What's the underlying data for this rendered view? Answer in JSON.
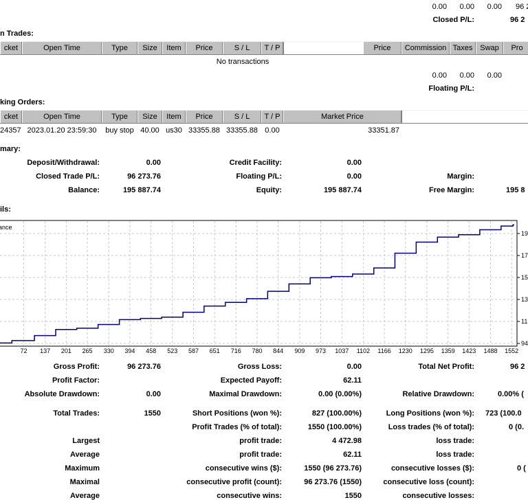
{
  "closed_section": {
    "values": [
      "0.00",
      "0.00",
      "0.00",
      "96 2"
    ],
    "label": "Closed P/L:",
    "value": "96 2"
  },
  "open_trades": {
    "title": "n Trades:",
    "headers": [
      "cket",
      "Open Time",
      "Type",
      "Size",
      "Item",
      "Price",
      "S / L",
      "T / P",
      "Price",
      "Commission",
      "Taxes",
      "Swap",
      "Pro"
    ],
    "empty_text": "No transactions",
    "totals": [
      "0.00",
      "0.00",
      "0.00"
    ],
    "floating_label": "Floating P/L:"
  },
  "working_orders": {
    "title": "king Orders:",
    "headers": [
      "cket",
      "Open Time",
      "Type",
      "Size",
      "Item",
      "Price",
      "S / L",
      "T / P",
      "Market Price"
    ],
    "row": [
      "24357",
      "2023.01.20 23:59:30",
      "buy stop",
      "40.00",
      "us30",
      "33355.88",
      "33355.88",
      "0.00",
      "33351.87"
    ]
  },
  "summary": {
    "title": "mary:",
    "deposit_label": "Deposit/Withdrawal:",
    "deposit_value": "0.00",
    "credit_label": "Credit Facility:",
    "credit_value": "0.00",
    "closed_label": "Closed Trade P/L:",
    "closed_value": "96 273.76",
    "floating_label": "Floating P/L:",
    "floating_value": "0.00",
    "margin_label": "Margin:",
    "balance_label": "Balance:",
    "balance_value": "195 887.74",
    "equity_label": "Equity:",
    "equity_value": "195 887.74",
    "free_margin_label": "Free Margin:",
    "free_margin_value": "195 8"
  },
  "details": {
    "title": "ils:"
  },
  "chart_data": {
    "type": "line",
    "legend": "ance",
    "x_ticks": [
      "72",
      "137",
      "201",
      "265",
      "330",
      "394",
      "458",
      "523",
      "587",
      "651",
      "716",
      "780",
      "844",
      "909",
      "973",
      "1037",
      "1102",
      "1166",
      "1230",
      "1295",
      "1359",
      "1423",
      "1488",
      "1552"
    ],
    "y_ticks": [
      "19",
      "17",
      "15",
      "13",
      "11",
      "94"
    ],
    "series": [
      {
        "color": "#000080",
        "points": [
          [
            0,
            94
          ],
          [
            72,
            96
          ],
          [
            137,
            100
          ],
          [
            201,
            105
          ],
          [
            265,
            106
          ],
          [
            330,
            109
          ],
          [
            394,
            113
          ],
          [
            458,
            114
          ],
          [
            523,
            115
          ],
          [
            587,
            119
          ],
          [
            651,
            124
          ],
          [
            716,
            127
          ],
          [
            780,
            130
          ],
          [
            844,
            136
          ],
          [
            909,
            142
          ],
          [
            973,
            147
          ],
          [
            1037,
            148
          ],
          [
            1102,
            150
          ],
          [
            1166,
            155
          ],
          [
            1230,
            167
          ],
          [
            1295,
            176
          ],
          [
            1359,
            180
          ],
          [
            1423,
            182
          ],
          [
            1488,
            186
          ],
          [
            1552,
            189
          ],
          [
            1560,
            190
          ]
        ]
      }
    ],
    "xlim": [
      0,
      1560
    ],
    "ylim": [
      92,
      193
    ]
  },
  "stats": {
    "gross_profit_label": "Gross Profit:",
    "gross_profit": "96 273.76",
    "gross_loss_label": "Gross Loss:",
    "gross_loss": "0.00",
    "total_net_label": "Total Net Profit:",
    "total_net": "96 2",
    "profit_factor_label": "Profit Factor:",
    "expected_payoff_label": "Expected Payoff:",
    "expected_payoff": "62.11",
    "abs_dd_label": "Absolute Drawdown:",
    "abs_dd": "0.00",
    "max_dd_label": "Maximal Drawdown:",
    "max_dd": "0.00 (0.00%)",
    "rel_dd_label": "Relative Drawdown:",
    "rel_dd": "0.00% (",
    "total_trades_label": "Total Trades:",
    "total_trades": "1550",
    "short_label": "Short Positions (won %):",
    "short": "827 (100.00%)",
    "long_label": "Long Positions (won %):",
    "long": "723 (100.0",
    "profit_trades_label": "Profit Trades (% of total):",
    "profit_trades": "1550 (100.00%)",
    "loss_trades_label": "Loss trades (% of total):",
    "loss_trades": "0 (0.",
    "largest_label": "Largest",
    "largest_profit_label": "profit trade:",
    "largest_profit": "4 472.98",
    "largest_loss_label": "loss trade:",
    "average_label": "Average",
    "average_profit_label": "profit trade:",
    "average_profit": "62.11",
    "average_loss_label": "loss trade:",
    "maximum_label": "Maximum",
    "max_cons_wins_label": "consecutive wins ($):",
    "max_cons_wins": "1550 (96 273.76)",
    "max_cons_losses_label": "consecutive losses ($):",
    "max_cons_losses": "0 (",
    "maximal_label": "Maximal",
    "maximal_profit_label": "consecutive profit (count):",
    "maximal_profit": "96 273.76 (1550)",
    "maximal_loss_label": "consecutive loss (count):",
    "average2_label": "Average",
    "avg_cons_wins_label": "consecutive wins:",
    "avg_cons_wins": "1550",
    "avg_cons_losses_label": "consecutive losses:"
  }
}
